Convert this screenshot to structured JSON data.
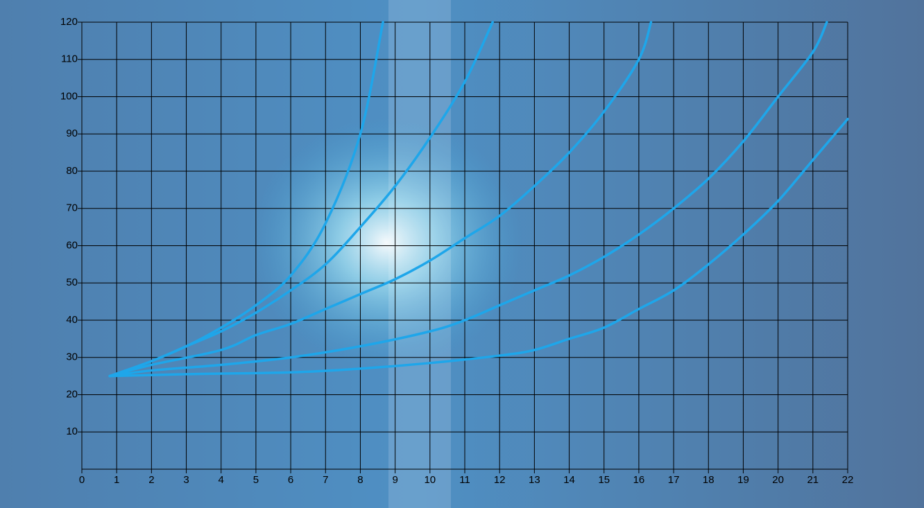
{
  "chart_data": {
    "type": "line",
    "xlim": [
      0,
      22
    ],
    "xticks": [
      0,
      1,
      2,
      3,
      4,
      5,
      6,
      7,
      8,
      9,
      10,
      11,
      12,
      13,
      14,
      15,
      16,
      17,
      18,
      19,
      20,
      21,
      22
    ],
    "ylim": [
      0,
      120
    ],
    "yticks": [
      10,
      20,
      30,
      40,
      50,
      60,
      70,
      80,
      90,
      100,
      110,
      120
    ],
    "grid": true,
    "series": [
      {
        "color": "#1ea6ea",
        "x": [
          0.8,
          2,
          3,
          4,
          5,
          6,
          7,
          8,
          8.65
        ],
        "values": [
          25,
          29,
          33,
          38,
          44,
          52,
          66,
          90,
          120
        ]
      },
      {
        "color": "#1ea6ea",
        "x": [
          0.8,
          2,
          3,
          4,
          5,
          6,
          7,
          8,
          9,
          10,
          11,
          11.8
        ],
        "values": [
          25,
          29,
          33,
          37,
          42,
          48,
          55,
          65,
          76,
          89,
          104,
          120
        ]
      },
      {
        "color": "#1ea6ea",
        "x": [
          0.8,
          2,
          4,
          5,
          6,
          7,
          8,
          9,
          10,
          11,
          12,
          13,
          14,
          15,
          16,
          16.35
        ],
        "values": [
          25,
          28,
          32,
          36,
          39,
          43,
          47,
          51,
          56,
          62,
          68,
          76,
          85,
          96,
          110,
          120
        ]
      },
      {
        "color": "#1ea6ea",
        "x": [
          0.8,
          2,
          4,
          6,
          8,
          10,
          11,
          12,
          13,
          14,
          15,
          16,
          17,
          18,
          19,
          20,
          21,
          21.4
        ],
        "values": [
          25,
          26.5,
          28,
          30,
          33,
          37,
          40,
          44,
          48,
          52,
          57,
          63,
          70,
          78,
          88,
          100,
          112,
          120
        ]
      },
      {
        "color": "#1ea6ea",
        "x": [
          0.8,
          3,
          6,
          8,
          10,
          12,
          13,
          14,
          15,
          16,
          17,
          18,
          19,
          20,
          21,
          22
        ],
        "values": [
          25,
          25.5,
          26,
          27,
          28.5,
          30.5,
          32,
          35,
          38,
          43,
          48,
          55,
          63,
          72,
          83,
          94
        ]
      }
    ]
  }
}
